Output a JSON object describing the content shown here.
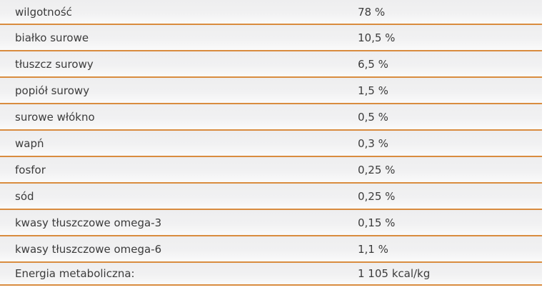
{
  "table": {
    "title": "analytical-constituents",
    "rows": [
      {
        "label": "wilgotność",
        "value": "78 %"
      },
      {
        "label": "białko surowe",
        "value": "10,5 %"
      },
      {
        "label": "tłuszcz surowy",
        "value": "6,5 %"
      },
      {
        "label": "popiół surowy",
        "value": "1,5 %"
      },
      {
        "label": "surowe włókno",
        "value": "0,5 %"
      },
      {
        "label": "wapń",
        "value": "0,3 %"
      },
      {
        "label": "fosfor",
        "value": "0,25 %"
      },
      {
        "label": "sód",
        "value": "0,25 %"
      },
      {
        "label": "kwasy tłuszczowe omega-3",
        "value": "0,15 %"
      },
      {
        "label": "kwasy tłuszczowe omega-6",
        "value": "1,1 %"
      },
      {
        "label": "Energia metaboliczna:",
        "value": "1 105 kcal/kg"
      }
    ],
    "colors": {
      "divider": "#d98c3f",
      "row_top": "#eeeeef",
      "row_bottom": "#fafafa",
      "text": "#3c3c3c"
    }
  }
}
